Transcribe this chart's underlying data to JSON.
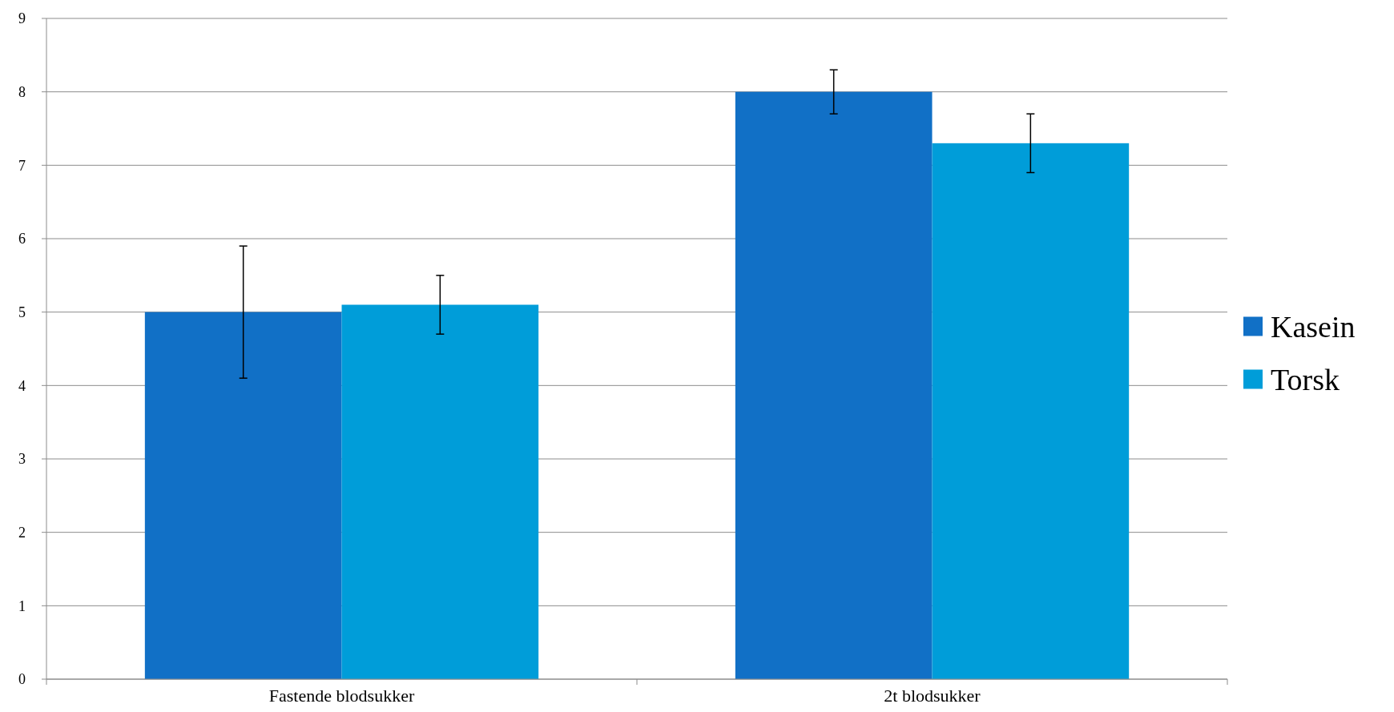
{
  "chart_data": {
    "type": "bar",
    "categories": [
      "Fastende blodsukker",
      "2t blodsukker"
    ],
    "series": [
      {
        "name": "Kasein",
        "color": "#1170c6",
        "values": [
          5.0,
          8.0
        ],
        "errors": [
          0.9,
          0.3
        ]
      },
      {
        "name": "Torsk",
        "color": "#009dd9",
        "values": [
          5.1,
          7.3
        ],
        "errors": [
          0.4,
          0.4
        ]
      }
    ],
    "ylim": [
      0,
      9
    ],
    "yticks": [
      0,
      1,
      2,
      3,
      4,
      5,
      6,
      7,
      8,
      9
    ],
    "grid": "y",
    "legend": "right"
  }
}
